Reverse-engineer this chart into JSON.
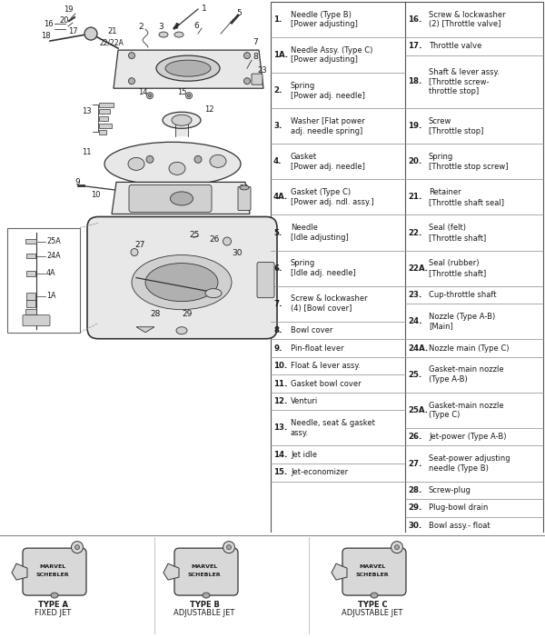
{
  "bg_color": "#f5f5f0",
  "diagram_bg": "#ffffff",
  "table_left_items": [
    {
      "num": "1.",
      "text": "Needle (Type B)\n[Power adjusting]",
      "rows": 2
    },
    {
      "num": "1A.",
      "text": "Needle Assy. (Type C)\n[Power adjusting]",
      "rows": 2
    },
    {
      "num": "2.",
      "text": "Spring\n[Power adj. needle]",
      "rows": 2
    },
    {
      "num": "3.",
      "text": "Washer [Flat power\nadj. needle spring]",
      "rows": 2
    },
    {
      "num": "4.",
      "text": "Gasket\n[Power adj. needle]",
      "rows": 2
    },
    {
      "num": "4A.",
      "text": "Gasket (Type C)\n[Power adj. ndl. assy.]",
      "rows": 2
    },
    {
      "num": "5.",
      "text": "Needle\n[Idle adjusting]",
      "rows": 2
    },
    {
      "num": "6.",
      "text": "Spring\n[Idle adj. needle]",
      "rows": 2
    },
    {
      "num": "7.",
      "text": "Screw & lockwasher\n(4) [Bowl cover]",
      "rows": 2
    },
    {
      "num": "8.",
      "text": "Bowl cover",
      "rows": 1
    },
    {
      "num": "9.",
      "text": "Pin-float lever",
      "rows": 1
    },
    {
      "num": "10.",
      "text": "Float & lever assy.",
      "rows": 1
    },
    {
      "num": "11.",
      "text": "Gasket bowl cover",
      "rows": 1
    },
    {
      "num": "12.",
      "text": "Venturi",
      "rows": 1
    },
    {
      "num": "13.",
      "text": "Needle, seat & gasket\nassy.",
      "rows": 2
    },
    {
      "num": "14.",
      "text": "Jet idle",
      "rows": 1
    },
    {
      "num": "15.",
      "text": "Jet-economizer",
      "rows": 1
    }
  ],
  "table_right_items": [
    {
      "num": "16.",
      "text": "Screw & lockwasher\n(2) [Throttle valve]",
      "rows": 2
    },
    {
      "num": "17.",
      "text": "Throttle valve",
      "rows": 1
    },
    {
      "num": "18.",
      "text": "Shaft & lever assy.\n[Throttle screw-\nthrottle stop]",
      "rows": 3
    },
    {
      "num": "19.",
      "text": "Screw\n[Throttle stop]",
      "rows": 2
    },
    {
      "num": "20.",
      "text": "Spring\n[Throttle stop screw]",
      "rows": 2
    },
    {
      "num": "21.",
      "text": "Retainer\n[Throttle shaft seal]",
      "rows": 2
    },
    {
      "num": "22.",
      "text": "Seal (felt)\n[Throttle shaft]",
      "rows": 2
    },
    {
      "num": "22A.",
      "text": "Seal (rubber)\n[Throttle shaft]",
      "rows": 2
    },
    {
      "num": "23.",
      "text": "Cup-throttle shaft",
      "rows": 1
    },
    {
      "num": "24.",
      "text": "Nozzle (Type A-B)\n[Main]",
      "rows": 2
    },
    {
      "num": "24A.",
      "text": "Nozzle main (Type C)",
      "rows": 1
    },
    {
      "num": "25.",
      "text": "Gasket-main nozzle\n(Type A-B)",
      "rows": 2
    },
    {
      "num": "25A.",
      "text": "Gasket-main nozzle\n(Type C)",
      "rows": 2
    },
    {
      "num": "26.",
      "text": "Jet-power (Type A-B)",
      "rows": 1
    },
    {
      "num": "27.",
      "text": "Seat-power adjusting\nneedle (Type B)",
      "rows": 2
    },
    {
      "num": "28.",
      "text": "Screw-plug",
      "rows": 1
    },
    {
      "num": "29.",
      "text": "Plug-bowl drain",
      "rows": 1
    },
    {
      "num": "30.",
      "text": "Bowl assy.- float",
      "rows": 1
    }
  ],
  "footer_items": [
    {
      "label1": "TYPE A",
      "label2": "FIXED JET"
    },
    {
      "label1": "TYPE B",
      "label2": "ADJUSTABLE JET"
    },
    {
      "label1": "TYPE C",
      "label2": "ADJUSTABLE JET"
    }
  ]
}
